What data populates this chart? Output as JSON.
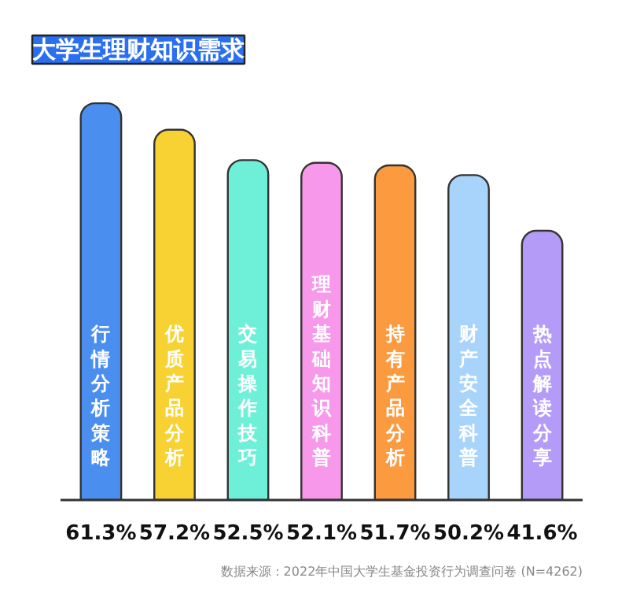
{
  "chart_data": {
    "type": "bar",
    "title": "大学生理财知识需求",
    "categories": [
      "行情分析策略",
      "优质产品分析",
      "交易操作技巧",
      "理财基础知识科普",
      "持有产品分析",
      "财产安全科普",
      "热点解读分享"
    ],
    "values": [
      61.3,
      57.2,
      52.5,
      52.1,
      51.7,
      50.2,
      41.6
    ],
    "value_labels": [
      "61.3%",
      "57.2%",
      "52.5%",
      "52.1%",
      "51.7%",
      "50.2%",
      "41.6%"
    ],
    "colors": [
      "#4a8ef0",
      "#f8d232",
      "#6ef0d8",
      "#f898ea",
      "#fb9a3e",
      "#a8d4fb",
      "#b49bf7"
    ],
    "annotations": [
      "数据来源：2022年中国大学生基金投资行为调查问卷 (N=4262)"
    ]
  }
}
